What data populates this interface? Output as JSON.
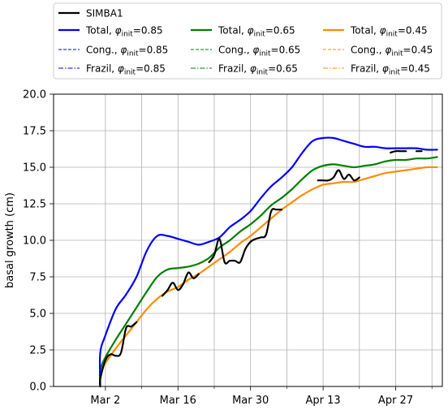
{
  "chart_data": {
    "type": "line",
    "title": "",
    "xlabel": "",
    "ylabel": "basal growth (cm)",
    "xlim": [
      "2022-02-20",
      "2022-05-06"
    ],
    "ylim": [
      0,
      20
    ],
    "xticks": [
      "2022-03-02",
      "2022-03-16",
      "2022-03-30",
      "2022-04-13",
      "2022-04-27"
    ],
    "xtick_labels": [
      "Mar 2",
      "Mar 16",
      "Mar 30",
      "Apr 13",
      "Apr 27"
    ],
    "x_minor_ticks": [
      "2022-03-09",
      "2022-03-23",
      "2022-04-06",
      "2022-04-20",
      "2022-05-04"
    ],
    "yticks": [
      0,
      2.5,
      5,
      7.5,
      10,
      12.5,
      15,
      17.5,
      20
    ],
    "ytick_labels": [
      "0.0",
      "2.5",
      "5.0",
      "7.5",
      "10.0",
      "12.5",
      "15.0",
      "17.5",
      "20.0"
    ],
    "grid": true,
    "legend": {
      "placement": "top",
      "columns": 3,
      "entries": [
        {
          "label": "SIMBA1",
          "color": "#000000",
          "style": "solid"
        },
        {
          "label_prefix": "Total, ",
          "phi": "0.85",
          "color": "#0000ff",
          "style": "solid"
        },
        {
          "label_prefix": "Cong., ",
          "phi": "0.85",
          "color": "#0000ff",
          "style": "dashed"
        },
        {
          "label_prefix": "Frazil, ",
          "phi": "0.85",
          "color": "#0000ff",
          "style": "dashdot"
        },
        {
          "label_prefix": "Total, ",
          "phi": "0.65",
          "color": "#008000",
          "style": "solid"
        },
        {
          "label_prefix": "Cong., ",
          "phi": "0.65",
          "color": "#008000",
          "style": "dashed"
        },
        {
          "label_prefix": "Frazil, ",
          "phi": "0.65",
          "color": "#008000",
          "style": "dashdot"
        },
        {
          "label_prefix": "Total, ",
          "phi": "0.45",
          "color": "#ff8c00",
          "style": "solid"
        },
        {
          "label_prefix": "Cong., ",
          "phi": "0.45",
          "color": "#ff8c00",
          "style": "dashed"
        },
        {
          "label_prefix": "Frazil, ",
          "phi": "0.45",
          "color": "#ff8c00",
          "style": "dashdot"
        }
      ],
      "phi_symbol": "φ",
      "phi_subscript": "init"
    },
    "series": [
      {
        "name": "Total, φinit=0.45",
        "color": "#ff8c00",
        "style": "solid",
        "x": [
          "2022-02-29",
          "2022-03-01",
          "2022-03-02",
          "2022-03-04",
          "2022-03-06",
          "2022-03-08",
          "2022-03-10",
          "2022-03-12",
          "2022-03-14",
          "2022-03-16",
          "2022-03-18",
          "2022-03-20",
          "2022-03-22",
          "2022-03-24",
          "2022-03-26",
          "2022-03-28",
          "2022-03-30",
          "2022-04-01",
          "2022-04-03",
          "2022-04-05",
          "2022-04-07",
          "2022-04-09",
          "2022-04-11",
          "2022-04-13",
          "2022-04-15",
          "2022-04-17",
          "2022-04-19",
          "2022-04-21",
          "2022-04-23",
          "2022-04-25",
          "2022-04-27",
          "2022-04-29",
          "2022-05-01",
          "2022-05-03",
          "2022-05-05"
        ],
        "y": [
          0.1,
          0.9,
          1.6,
          2.6,
          3.5,
          4.4,
          5.3,
          6.0,
          6.5,
          6.8,
          7.3,
          7.7,
          8.2,
          8.7,
          9.2,
          9.8,
          10.3,
          10.9,
          11.5,
          12.1,
          12.6,
          13.1,
          13.5,
          13.8,
          13.9,
          14.0,
          14.0,
          14.2,
          14.4,
          14.6,
          14.7,
          14.8,
          14.9,
          15.0,
          15.0
        ]
      },
      {
        "name": "Total, φinit=0.65",
        "color": "#008000",
        "style": "solid",
        "x": [
          "2022-02-29",
          "2022-03-01",
          "2022-03-02",
          "2022-03-04",
          "2022-03-06",
          "2022-03-08",
          "2022-03-10",
          "2022-03-12",
          "2022-03-14",
          "2022-03-16",
          "2022-03-18",
          "2022-03-20",
          "2022-03-22",
          "2022-03-24",
          "2022-03-26",
          "2022-03-28",
          "2022-03-30",
          "2022-04-01",
          "2022-04-03",
          "2022-04-05",
          "2022-04-07",
          "2022-04-09",
          "2022-04-11",
          "2022-04-13",
          "2022-04-15",
          "2022-04-17",
          "2022-04-19",
          "2022-04-21",
          "2022-04-23",
          "2022-04-25",
          "2022-04-27",
          "2022-04-29",
          "2022-05-01",
          "2022-05-03",
          "2022-05-05"
        ],
        "y": [
          0.1,
          1.1,
          2.0,
          3.2,
          4.3,
          5.4,
          6.5,
          7.5,
          8.0,
          8.1,
          8.2,
          8.4,
          8.8,
          9.5,
          10.0,
          10.6,
          11.1,
          11.7,
          12.4,
          12.9,
          13.5,
          14.2,
          14.8,
          15.1,
          15.2,
          15.1,
          15.0,
          15.1,
          15.2,
          15.4,
          15.5,
          15.5,
          15.6,
          15.6,
          15.7
        ]
      },
      {
        "name": "Total, φinit=0.85",
        "color": "#0000ff",
        "style": "solid",
        "x": [
          "2022-02-29",
          "2022-03-01",
          "2022-03-02",
          "2022-03-04",
          "2022-03-06",
          "2022-03-08",
          "2022-03-10",
          "2022-03-12",
          "2022-03-14",
          "2022-03-16",
          "2022-03-18",
          "2022-03-20",
          "2022-03-22",
          "2022-03-24",
          "2022-03-26",
          "2022-03-28",
          "2022-03-30",
          "2022-04-01",
          "2022-04-03",
          "2022-04-05",
          "2022-04-07",
          "2022-04-09",
          "2022-04-11",
          "2022-04-13",
          "2022-04-15",
          "2022-04-17",
          "2022-04-19",
          "2022-04-21",
          "2022-04-23",
          "2022-04-25",
          "2022-04-27",
          "2022-04-29",
          "2022-05-01",
          "2022-05-03",
          "2022-05-05"
        ],
        "y": [
          0.2,
          2.3,
          3.5,
          5.3,
          6.3,
          7.5,
          9.3,
          10.3,
          10.3,
          10.1,
          9.9,
          9.7,
          9.9,
          10.2,
          10.9,
          11.4,
          12.0,
          12.9,
          13.7,
          14.3,
          15.0,
          16.0,
          16.8,
          17.0,
          17.0,
          16.8,
          16.6,
          16.4,
          16.4,
          16.3,
          16.3,
          16.3,
          16.3,
          16.2,
          16.2
        ]
      },
      {
        "name": "SIMBA1",
        "color": "#000000",
        "style": "solid",
        "segments": [
          {
            "x": [
              "2022-02-29",
              "2022-03-01",
              "2022-03-02",
              "2022-03-03",
              "2022-03-04",
              "2022-03-05",
              "2022-03-06",
              "2022-03-07",
              "2022-03-08"
            ],
            "y": [
              0.0,
              0.5,
              1.8,
              2.2,
              2.1,
              2.3,
              4.0,
              4.1,
              4.4
            ]
          },
          {
            "x": [
              "2022-03-13",
              "2022-03-14",
              "2022-03-15",
              "2022-03-16",
              "2022-03-17",
              "2022-03-18",
              "2022-03-19",
              "2022-03-20"
            ],
            "y": [
              6.2,
              6.6,
              7.1,
              6.6,
              7.0,
              7.8,
              7.4,
              7.7
            ]
          },
          {
            "x": [
              "2022-03-22",
              "2022-03-23",
              "2022-03-24",
              "2022-03-25",
              "2022-03-26",
              "2022-03-27",
              "2022-03-28",
              "2022-03-29",
              "2022-03-30",
              "2022-03-31",
              "2022-04-01",
              "2022-04-02",
              "2022-04-03",
              "2022-04-04",
              "2022-04-05"
            ],
            "y": [
              8.5,
              9.0,
              10.1,
              8.5,
              8.6,
              8.6,
              8.5,
              9.4,
              9.9,
              10.1,
              10.2,
              10.4,
              12.0,
              12.1,
              12.1
            ]
          },
          {
            "x": [
              "2022-04-12",
              "2022-04-13",
              "2022-04-14",
              "2022-04-15",
              "2022-04-16",
              "2022-04-17",
              "2022-04-18",
              "2022-04-19",
              "2022-04-20"
            ],
            "y": [
              14.1,
              14.1,
              14.1,
              14.3,
              14.8,
              14.2,
              14.5,
              14.1,
              14.3
            ]
          },
          {
            "x": [
              "2022-04-26",
              "2022-04-27",
              "2022-04-28",
              "2022-04-29"
            ],
            "y": [
              16.0,
              16.1,
              16.1,
              16.1
            ]
          },
          {
            "x": [
              "2022-05-01",
              "2022-05-02"
            ],
            "y": [
              16.1,
              16.1
            ]
          }
        ]
      },
      {
        "name": "Cong. / Frazil (all φinit)",
        "color": "#888888",
        "style": "dashed",
        "x": [
          "2022-02-29",
          "2022-05-06"
        ],
        "y": [
          0.0,
          0.0
        ]
      }
    ]
  }
}
